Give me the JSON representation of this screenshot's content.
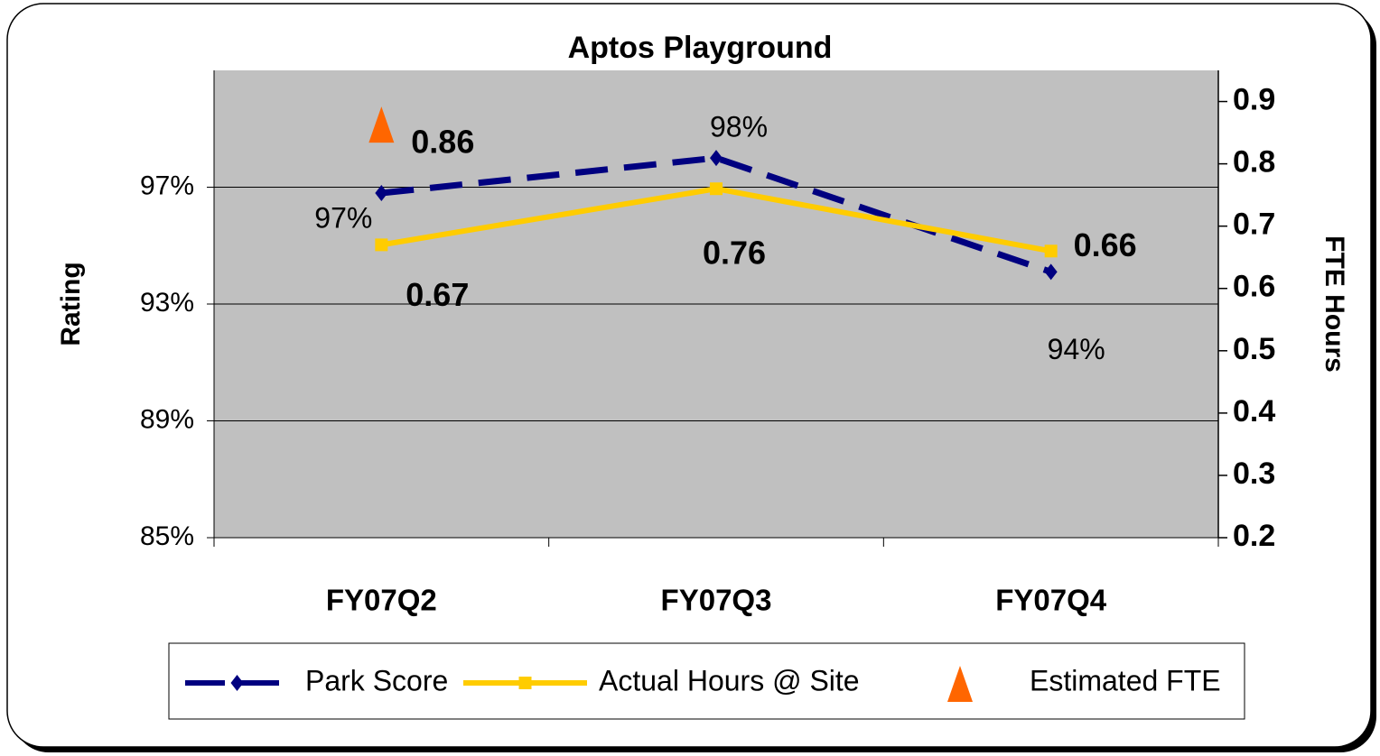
{
  "chart_data": {
    "type": "line",
    "title": "Aptos Playground",
    "categories": [
      "FY07Q2",
      "FY07Q3",
      "FY07Q4"
    ],
    "ylabel": "Rating",
    "y2label": "FTE Hours",
    "ylim": [
      85,
      101
    ],
    "yticks": [
      {
        "value": 85,
        "label": "85%"
      },
      {
        "value": 89,
        "label": "89%"
      },
      {
        "value": 93,
        "label": "93%"
      },
      {
        "value": 97,
        "label": "97%"
      }
    ],
    "y2lim": [
      0.2,
      0.95
    ],
    "y2ticks": [
      0.2,
      0.3,
      0.4,
      0.5,
      0.6,
      0.7,
      0.8,
      0.9
    ],
    "grid": true,
    "legend": "bottom",
    "series": [
      {
        "name": "Park Score",
        "color": "#000080",
        "marker": "diamond",
        "dash": true,
        "line": true,
        "values": [
          96.8,
          98.0,
          94.1
        ],
        "value_labels": [
          "97%",
          "98%",
          "94%"
        ]
      },
      {
        "name": "Actual Hours @ Site",
        "color": "#FFCC00",
        "marker": "square",
        "dash": false,
        "line": true,
        "axis": "y2",
        "values": [
          0.67,
          0.76,
          0.66
        ]
      },
      {
        "name": "Estimated FTE",
        "color": "#FF6600",
        "marker": "triangle",
        "dash": false,
        "line": false,
        "axis": "y2",
        "values": [
          0.86,
          null,
          null
        ]
      }
    ]
  }
}
